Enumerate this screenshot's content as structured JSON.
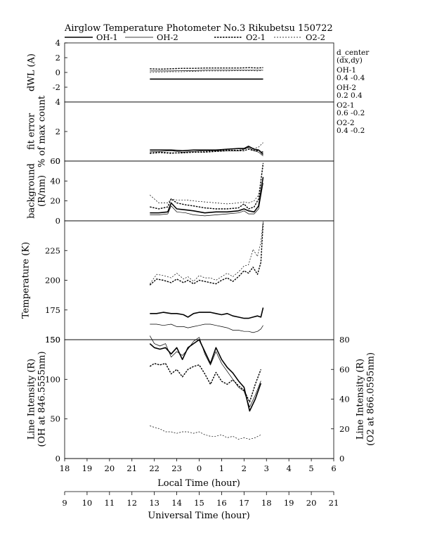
{
  "title": "Airglow Temperature Photometer No.3  Rikubetsu    150722",
  "legend": [
    {
      "label": "OH-1",
      "style": "thick-solid"
    },
    {
      "label": "OH-2",
      "style": "thin-solid"
    },
    {
      "label": "O2-1",
      "style": "thick-dotted"
    },
    {
      "label": "O2-2",
      "style": "thin-dotted"
    }
  ],
  "side_notes": {
    "header": [
      "d_center",
      "(dx,dy)"
    ],
    "entries": [
      {
        "name": "OH-1",
        "values": "0.4  -0.4"
      },
      {
        "name": "OH-2",
        "values": "0.2   0.4"
      },
      {
        "name": "O2-1",
        "values": "0.6   -0.2"
      },
      {
        "name": "O2-2",
        "values": "0.4   -0.2"
      }
    ]
  },
  "axes": {
    "local_time": {
      "label": "Local Time (hour)",
      "ticks": [
        "18",
        "19",
        "20",
        "21",
        "22",
        "23",
        "0",
        "1",
        "2",
        "3",
        "4",
        "5",
        "6"
      ]
    },
    "universal_time": {
      "label": "Universal Time (hour)",
      "ticks": [
        "9",
        "10",
        "11",
        "12",
        "13",
        "14",
        "15",
        "16",
        "17",
        "18",
        "19",
        "20",
        "21"
      ]
    }
  },
  "chart_data": [
    {
      "type": "line",
      "panel": "dwl",
      "ylabel": "dWL (A)",
      "ylim": [
        -4,
        4
      ],
      "yticks": [
        "4",
        "2",
        "0",
        "-2"
      ],
      "x_unit": "Universal Time (hour)",
      "x": [
        12.8,
        13.25,
        13.75,
        14.25,
        14.75,
        15.25,
        15.75,
        16.25,
        16.75,
        17.25,
        17.6,
        17.85
      ],
      "series": [
        {
          "name": "OH-1",
          "values": [
            -0.9,
            -0.9,
            -0.9,
            -0.9,
            -0.9,
            -0.9,
            -0.9,
            -0.9,
            -0.9,
            -0.9,
            -0.9,
            -0.9
          ]
        },
        {
          "name": "OH-2",
          "values": [
            0.2,
            0.2,
            0.2,
            0.25,
            0.25,
            0.3,
            0.3,
            0.3,
            0.3,
            0.3,
            0.3,
            0.3
          ]
        },
        {
          "name": "O2-1",
          "values": [
            0.5,
            0.45,
            0.5,
            0.55,
            0.55,
            0.6,
            0.6,
            0.6,
            0.6,
            0.65,
            0.6,
            0.65
          ]
        },
        {
          "name": "O2-2",
          "values": [
            0.0,
            0.05,
            0.1,
            0.1,
            0.15,
            0.2,
            0.2,
            0.2,
            0.25,
            0.25,
            0.2,
            0.3
          ]
        }
      ]
    },
    {
      "type": "line",
      "panel": "fit_error",
      "ylabel": "fit error",
      "ylabel2": "% of max count",
      "ylim": [
        0,
        4
      ],
      "yticks": [
        "4",
        "2",
        "0"
      ],
      "x_unit": "Universal Time (hour)",
      "x": [
        12.8,
        13.25,
        13.75,
        14.25,
        14.75,
        15.25,
        15.75,
        16.25,
        16.75,
        17.0,
        17.2,
        17.45,
        17.65,
        17.85
      ],
      "series": [
        {
          "name": "OH-1",
          "values": [
            0.75,
            0.75,
            0.75,
            0.7,
            0.75,
            0.75,
            0.75,
            0.8,
            0.85,
            0.85,
            1.0,
            0.8,
            0.75,
            0.45
          ]
        },
        {
          "name": "OH-2",
          "values": [
            0.65,
            0.65,
            0.7,
            0.6,
            0.65,
            0.7,
            0.7,
            0.7,
            0.7,
            0.8,
            0.9,
            0.7,
            0.6,
            0.35
          ]
        },
        {
          "name": "O2-1",
          "values": [
            0.55,
            0.6,
            0.55,
            0.55,
            0.6,
            0.6,
            0.65,
            0.7,
            0.7,
            0.7,
            0.8,
            0.7,
            0.7,
            0.6
          ]
        },
        {
          "name": "O2-2",
          "values": [
            0.5,
            0.55,
            0.5,
            0.6,
            0.6,
            0.65,
            0.7,
            0.75,
            0.75,
            0.8,
            0.95,
            0.85,
            0.95,
            1.25
          ]
        }
      ]
    },
    {
      "type": "line",
      "panel": "background",
      "ylabel": "background",
      "ylabel2": "(R/nm)",
      "ylim": [
        0,
        60
      ],
      "yticks": [
        "60",
        "40",
        "20",
        "0"
      ],
      "x_unit": "Universal Time (hour)",
      "x": [
        12.8,
        13.2,
        13.6,
        13.75,
        14.0,
        14.4,
        14.75,
        15.25,
        15.75,
        16.25,
        16.75,
        17.0,
        17.2,
        17.45,
        17.65,
        17.85
      ],
      "series": [
        {
          "name": "OH-1",
          "values": [
            8,
            8,
            9,
            18,
            12,
            11,
            10,
            8,
            9,
            9,
            10,
            12,
            10,
            9,
            15,
            44
          ]
        },
        {
          "name": "OH-2",
          "values": [
            6,
            6,
            7,
            15,
            9,
            8,
            6,
            5,
            6,
            7,
            8,
            10,
            7,
            7,
            12,
            38
          ]
        },
        {
          "name": "O2-1",
          "values": [
            14,
            12,
            14,
            22,
            18,
            16,
            15,
            13,
            12,
            12,
            13,
            17,
            12,
            14,
            22,
            58
          ]
        },
        {
          "name": "O2-2",
          "values": [
            26,
            18,
            18,
            22,
            21,
            21,
            20,
            19,
            18,
            17,
            18,
            19,
            18,
            20,
            26,
            55
          ]
        }
      ]
    },
    {
      "type": "line",
      "panel": "temperature",
      "ylabel": "Temperature (K)",
      "ylim": [
        150,
        250
      ],
      "yticks": [
        "225",
        "200",
        "175",
        "150"
      ],
      "x_unit": "Universal Time (hour)",
      "x": [
        12.8,
        13.1,
        13.4,
        13.75,
        14.0,
        14.3,
        14.5,
        14.75,
        15.0,
        15.25,
        15.5,
        15.75,
        16.0,
        16.25,
        16.5,
        16.75,
        17.0,
        17.2,
        17.4,
        17.6,
        17.75,
        17.85
      ],
      "series": [
        {
          "name": "OH-1",
          "values": [
            172,
            172,
            173,
            172,
            172,
            171,
            169,
            172,
            173,
            173,
            173,
            172,
            171,
            172,
            170,
            169,
            168,
            168,
            169,
            170,
            169,
            177
          ]
        },
        {
          "name": "OH-2",
          "values": [
            163,
            163,
            162,
            163,
            161,
            161,
            160,
            161,
            162,
            163,
            163,
            162,
            161,
            160,
            158,
            158,
            157,
            157,
            156,
            157,
            159,
            162
          ]
        },
        {
          "name": "O2-1",
          "values": [
            196,
            201,
            200,
            198,
            201,
            198,
            200,
            197,
            200,
            199,
            198,
            197,
            200,
            202,
            199,
            203,
            208,
            206,
            211,
            205,
            215,
            248
          ]
        },
        {
          "name": "O2-2",
          "values": [
            197,
            205,
            204,
            202,
            206,
            201,
            203,
            199,
            204,
            202,
            202,
            200,
            203,
            206,
            203,
            207,
            212,
            213,
            226,
            220,
            232,
            250
          ]
        }
      ]
    },
    {
      "type": "line",
      "panel": "line_intensity",
      "ylabel": "Line Intensity (R)",
      "ylabel2": "(OH at 846.5555nm)",
      "ylim": [
        0,
        150
      ],
      "yticks": [
        "150",
        "100",
        "50",
        "0"
      ],
      "ylabel_right": "Line Intensity (R)",
      "ylabel_right2": "(O2 at 866.0595nm)",
      "ylim_right": [
        0,
        80
      ],
      "yticks_right": [
        "80",
        "60",
        "40",
        "20",
        "0"
      ],
      "x_unit": "Universal Time (hour)",
      "x": [
        12.8,
        13.0,
        13.25,
        13.5,
        13.75,
        14.0,
        14.25,
        14.5,
        14.75,
        15.0,
        15.25,
        15.5,
        15.75,
        16.0,
        16.25,
        16.5,
        16.75,
        17.0,
        17.25,
        17.5,
        17.75
      ],
      "series": [
        {
          "name": "OH-1",
          "axis": "left",
          "values": [
            145,
            140,
            138,
            140,
            132,
            140,
            125,
            140,
            145,
            150,
            135,
            120,
            140,
            125,
            115,
            108,
            98,
            90,
            60,
            75,
            95
          ]
        },
        {
          "name": "OH-2",
          "axis": "left",
          "values": [
            155,
            145,
            142,
            145,
            128,
            135,
            130,
            138,
            148,
            153,
            132,
            118,
            135,
            120,
            110,
            100,
            90,
            85,
            65,
            80,
            98
          ]
        },
        {
          "name": "O2-1",
          "axis": "right",
          "values": [
            62,
            64,
            63,
            64,
            57,
            60,
            55,
            60,
            62,
            63,
            57,
            50,
            58,
            52,
            50,
            53,
            49,
            46,
            38,
            50,
            60
          ]
        },
        {
          "name": "O2-2",
          "axis": "right",
          "values": [
            22,
            21,
            20,
            18,
            18,
            17,
            18,
            18,
            17,
            18,
            16,
            15,
            15,
            16,
            14,
            15,
            13,
            14,
            13,
            14,
            16
          ]
        }
      ]
    }
  ]
}
